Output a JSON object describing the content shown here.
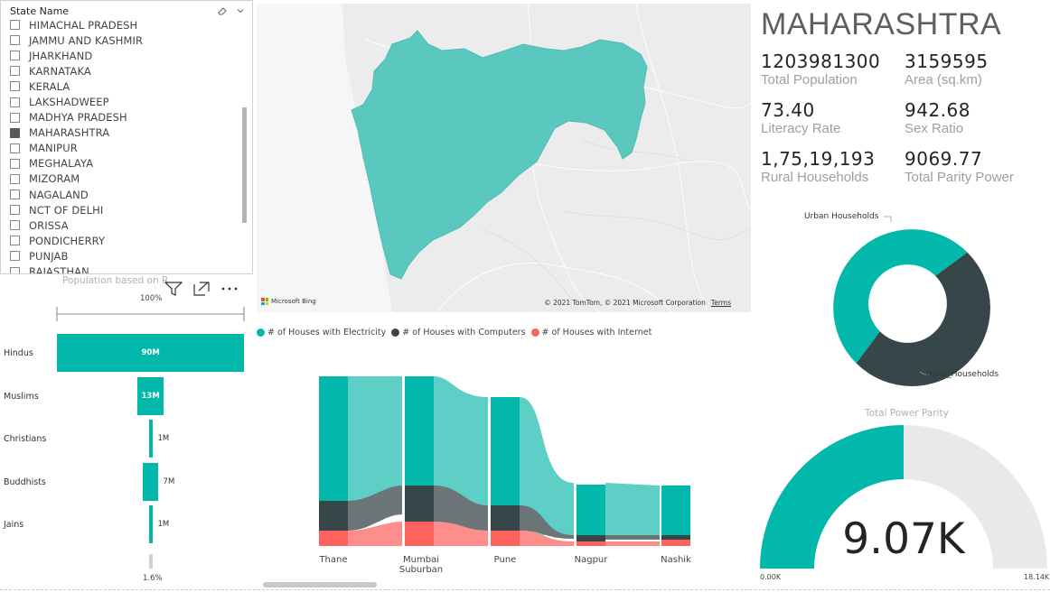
{
  "slicer": {
    "title": "State Name",
    "items": [
      {
        "label": "HIMACHAL PRADESH",
        "checked": false
      },
      {
        "label": "JAMMU AND KASHMIR",
        "checked": false
      },
      {
        "label": "JHARKHAND",
        "checked": false
      },
      {
        "label": "KARNATAKA",
        "checked": false
      },
      {
        "label": "KERALA",
        "checked": false
      },
      {
        "label": "LAKSHADWEEP",
        "checked": false
      },
      {
        "label": "MADHYA PRADESH",
        "checked": false
      },
      {
        "label": "MAHARASHTRA",
        "checked": true
      },
      {
        "label": "MANIPUR",
        "checked": false
      },
      {
        "label": "MEGHALAYA",
        "checked": false
      },
      {
        "label": "MIZORAM",
        "checked": false
      },
      {
        "label": "NAGALAND",
        "checked": false
      },
      {
        "label": "NCT OF DELHI",
        "checked": false
      },
      {
        "label": "ORISSA",
        "checked": false
      },
      {
        "label": "PONDICHERRY",
        "checked": false
      },
      {
        "label": "PUNJAB",
        "checked": false
      },
      {
        "label": "RAJASTHAN",
        "checked": false
      }
    ]
  },
  "map": {
    "attribution": "Microsoft Bing",
    "copyright": "© 2021 TomTom, © 2021 Microsoft Corporation",
    "terms": "Terms",
    "fill_color": "#5bc8c0"
  },
  "kpi": {
    "state": "MAHARASHTRA",
    "items": [
      {
        "value": "1203981300",
        "label": "Total Population"
      },
      {
        "value": "3159595",
        "label": "Area (sq.km)"
      },
      {
        "value": "73.40",
        "label": "Literacy Rate"
      },
      {
        "value": "942.68",
        "label": "Sex Ratio"
      },
      {
        "value": "1,75,19,193",
        "label": "Rural Households"
      },
      {
        "value": "9069.77",
        "label": "Total Parity Power"
      }
    ]
  },
  "religion": {
    "title": "Population based on R",
    "top_pct": "100%",
    "bottom_pct": "1.6%",
    "bars": [
      {
        "label": "Hindus",
        "value": 90,
        "display": "90M"
      },
      {
        "label": "Muslims",
        "value": 13,
        "display": "13M"
      },
      {
        "label": "Christians",
        "value": 1,
        "display": "1M"
      },
      {
        "label": "Buddhists",
        "value": 7,
        "display": "7M"
      },
      {
        "label": "Jains",
        "value": 1,
        "display": "1M"
      }
    ]
  },
  "ribbon": {
    "legend": [
      {
        "label": "# of Houses with Electricity",
        "color": "#01b8aa"
      },
      {
        "label": "# of Houses with Computers",
        "color": "#374649"
      },
      {
        "label": "# of Houses with Internet",
        "color": "#fd625e"
      }
    ],
    "categories": [
      "Thane",
      "Mumbai Suburban",
      "Pune",
      "Nagpur",
      "Nashik"
    ],
    "category_lines": [
      [
        "Thane"
      ],
      [
        "Mumbai",
        "Suburban"
      ],
      [
        "Pune"
      ],
      [
        "Nagpur"
      ],
      [
        "Nashik"
      ]
    ]
  },
  "chart_data": [
    {
      "type": "bar",
      "categories": [
        "Hindus",
        "Muslims",
        "Christians",
        "Buddhists",
        "Jains"
      ],
      "values": [
        90,
        13,
        1,
        7,
        1
      ],
      "title": "Population based on R"
    },
    {
      "type": "area",
      "categories": [
        "Thane",
        "Mumbai Suburban",
        "Pune",
        "Nagpur",
        "Nashik"
      ],
      "series": [
        {
          "name": "# of Houses with Electricity",
          "values": [
            2.0,
            2.0,
            1.4,
            0.8,
            0.8
          ]
        },
        {
          "name": "# of Houses with Computers",
          "values": [
            0.45,
            0.5,
            0.3,
            0.1,
            0.08
          ]
        },
        {
          "name": "# of Houses with Internet",
          "values": [
            0.2,
            0.3,
            0.2,
            0.05,
            0.04
          ]
        }
      ]
    },
    {
      "type": "pie",
      "categories": [
        "Urban Households",
        "Rural_Households"
      ],
      "values": [
        44,
        56
      ]
    },
    {
      "type": "gauge",
      "title": "Total Power Parity",
      "value": 9069.77,
      "min": 0,
      "max": 18140,
      "display": "9.07K",
      "min_label": "0.00K",
      "max_label": "18.14K"
    }
  ],
  "donut": {
    "urban_label": "Urban Households",
    "rural_label": "Rural_Households",
    "urban_color": "#01b8aa",
    "rural_color": "#374649"
  },
  "gauge": {
    "title": "Total Power Parity",
    "display": "9.07K",
    "min_label": "0.00K",
    "max_label": "18.14K",
    "fill_color": "#01b8aa",
    "track_color": "#e9e9e9"
  }
}
